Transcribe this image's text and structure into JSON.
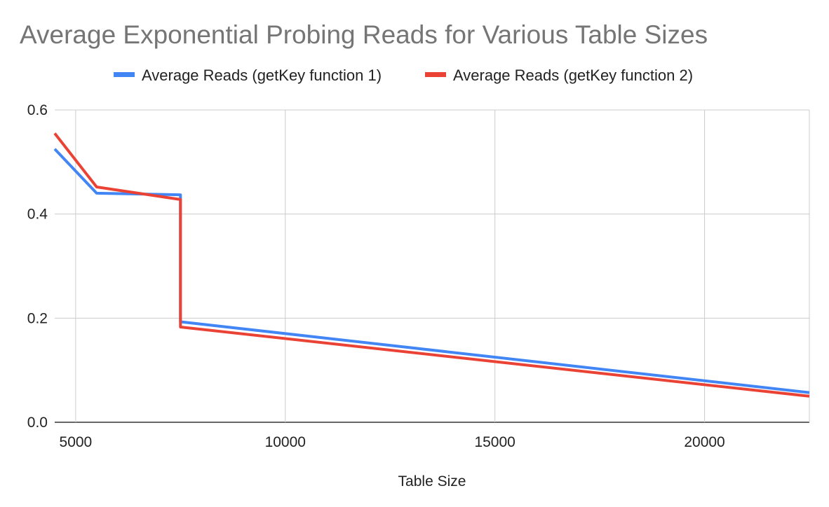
{
  "chart_data": {
    "type": "line",
    "title": "Average Exponential Probing Reads for Various Table Sizes",
    "xlabel": "Table Size",
    "ylabel": "",
    "xlim": [
      4500,
      22500
    ],
    "ylim": [
      0,
      0.6
    ],
    "x_ticks": [
      5000,
      10000,
      15000,
      20000
    ],
    "y_ticks": [
      0,
      0.2,
      0.4,
      0.6
    ],
    "x_tick_labels": [
      "5000",
      "10000",
      "15000",
      "20000"
    ],
    "y_tick_labels": [
      "0.0",
      "0.2",
      "0.4",
      "0.6"
    ],
    "grid": true,
    "legend_position": "top-center",
    "series": [
      {
        "name": "Average Reads (getKey function 1)",
        "color": "#4285F4",
        "x": [
          4500,
          5500,
          7500,
          7500,
          22500
        ],
        "y": [
          0.525,
          0.44,
          0.437,
          0.193,
          0.057
        ]
      },
      {
        "name": "Average Reads (getKey function 2)",
        "color": "#EA4335",
        "x": [
          4500,
          5500,
          7500,
          7500,
          22500
        ],
        "y": [
          0.555,
          0.452,
          0.428,
          0.183,
          0.05
        ]
      }
    ]
  }
}
